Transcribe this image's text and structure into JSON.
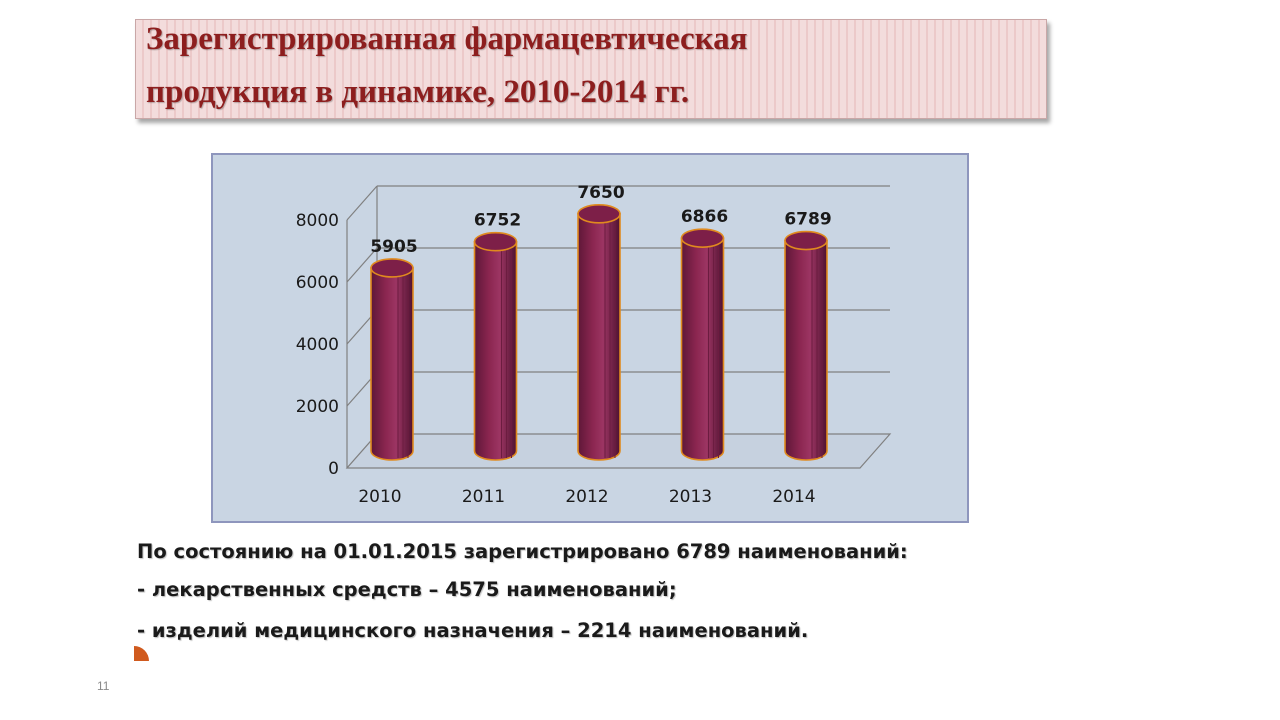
{
  "slide": {
    "title_line1": "Зарегистрированная фармацевтическая",
    "title_line2": "продукция в динамике, 2010-2014 гг.",
    "info_line1": "По состоянию на 01.01.2015 зарегистрировано 6789 наименований:",
    "info_line2": "- лекарственных средств – 4575 наименований;",
    "info_line3": "- изделий медицинского назначения – 2214 наименований.",
    "page_number": "11"
  },
  "colors": {
    "bar": "#8b2650",
    "bar_edge": "#e08a1e",
    "title_text": "#8d1e1e",
    "chart_bg": "#c9d5e3",
    "accent": "#d05a1e"
  },
  "chart_data": {
    "type": "bar",
    "style": "3d-cylinder",
    "categories": [
      "2010",
      "2011",
      "2012",
      "2013",
      "2014"
    ],
    "values": [
      5905,
      6752,
      7650,
      6866,
      6789
    ],
    "data_labels": [
      "5905",
      "6752",
      "7650",
      "6866",
      "6789"
    ],
    "ylim": [
      0,
      8000
    ],
    "yticks": [
      "0",
      "2000",
      "4000",
      "6000",
      "8000"
    ],
    "grid": true,
    "legend": "none"
  }
}
